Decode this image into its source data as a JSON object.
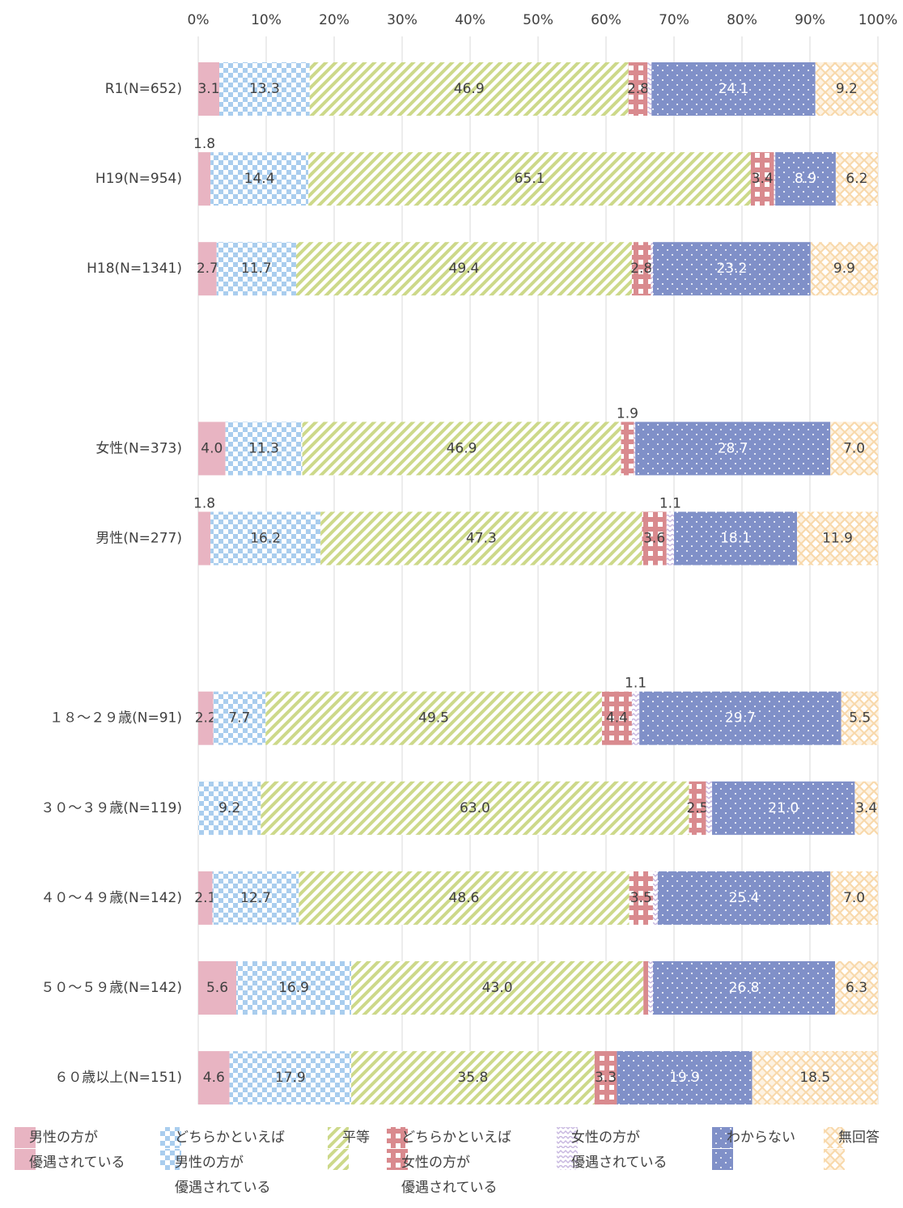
{
  "chart_data": {
    "type": "stacked-bar-horizontal",
    "categories": [
      "R1(N=652)",
      "H19(N=954)",
      "H18(N=1341)",
      null,
      "女性(N=373)",
      "男性(N=277)",
      null,
      "１８～２９歳(N=91)",
      "３０～３９歳(N=119)",
      "４０～４９歳(N=142)",
      "５０～５９歳(N=142)",
      "６０歳以上(N=151)"
    ],
    "xlim": [
      0,
      100
    ],
    "xticks": [
      {
        "value": 0,
        "label": "0%"
      },
      {
        "value": 10,
        "label": "10%"
      },
      {
        "value": 20,
        "label": "20%"
      },
      {
        "value": 30,
        "label": "30%"
      },
      {
        "value": 40,
        "label": "40%"
      },
      {
        "value": 50,
        "label": "50%"
      },
      {
        "value": 60,
        "label": "60%"
      },
      {
        "value": 70,
        "label": "70%"
      },
      {
        "value": 80,
        "label": "80%"
      },
      {
        "value": 90,
        "label": "90%"
      },
      {
        "value": 100,
        "label": "100%"
      }
    ],
    "grid": true,
    "series": [
      {
        "name": "男性の方が\n優遇されている",
        "color": "#e8b4c2",
        "values": [
          3.1,
          1.8,
          2.7,
          null,
          4.0,
          1.8,
          null,
          2.2,
          0,
          2.1,
          5.6,
          4.6
        ],
        "value_labels": [
          "3.1",
          "1.8",
          "2.7",
          null,
          "4.0",
          "1.8",
          null,
          "2.2",
          null,
          "2.1",
          "5.6",
          "4.6"
        ]
      },
      {
        "name": "どちらかといえば\n男性の方が\n優遇されている",
        "color": "#a9cdee",
        "values": [
          13.3,
          14.4,
          11.7,
          null,
          11.3,
          16.2,
          null,
          7.7,
          9.2,
          12.7,
          16.9,
          17.9
        ],
        "value_labels": [
          "13.3",
          "14.4",
          "11.7",
          null,
          "11.3",
          "16.2",
          null,
          "7.7",
          "9.2",
          "12.7",
          "16.9",
          "17.9"
        ]
      },
      {
        "name": "平等",
        "color": "#cdd98a",
        "values": [
          46.9,
          65.1,
          49.4,
          null,
          46.9,
          47.3,
          null,
          49.5,
          63.0,
          48.6,
          43.0,
          35.8
        ],
        "value_labels": [
          "46.9",
          "65.1",
          "49.4",
          null,
          "46.9",
          "47.3",
          null,
          "49.5",
          "63.0",
          "48.6",
          "43.0",
          "35.8"
        ]
      },
      {
        "name": "どちらかといえば\n女性の方が\n優遇されている",
        "color": "#d98a8e",
        "values": [
          2.8,
          3.4,
          2.8,
          null,
          1.9,
          3.6,
          null,
          4.4,
          2.5,
          3.5,
          0.7,
          3.3
        ],
        "value_labels": [
          "2.8",
          "3.4",
          "2.8",
          null,
          "1.9",
          "3.6",
          null,
          "4.4",
          "2.5",
          "3.5",
          null,
          "3.3"
        ]
      },
      {
        "name": "女性の方が\n優遇されている",
        "color": "#c8b8e0",
        "values": [
          0.6,
          0.2,
          0.3,
          null,
          0.2,
          1.1,
          null,
          1.1,
          0.9,
          0.7,
          0.7,
          0
        ],
        "value_labels": [
          null,
          null,
          null,
          null,
          null,
          "1.1",
          null,
          "1.1",
          null,
          null,
          null,
          null
        ]
      },
      {
        "name": "わからない",
        "color": "#8090c8",
        "values": [
          24.1,
          8.9,
          23.2,
          null,
          28.7,
          18.1,
          null,
          29.7,
          21.0,
          25.4,
          26.8,
          19.9
        ],
        "value_labels": [
          "24.1",
          "8.9",
          "23.2",
          null,
          "28.7",
          "18.1",
          null,
          "29.7",
          "21.0",
          "25.4",
          "26.8",
          "19.9"
        ]
      },
      {
        "name": "無回答",
        "color": "#f8d8aa",
        "values": [
          9.2,
          6.2,
          9.9,
          null,
          7.0,
          11.9,
          null,
          5.5,
          3.4,
          7.0,
          6.3,
          18.5
        ],
        "value_labels": [
          "9.2",
          "6.2",
          "9.9",
          null,
          "7.0",
          "11.9",
          null,
          "5.5",
          "3.4",
          "7.0",
          "6.3",
          "18.5"
        ]
      }
    ]
  }
}
